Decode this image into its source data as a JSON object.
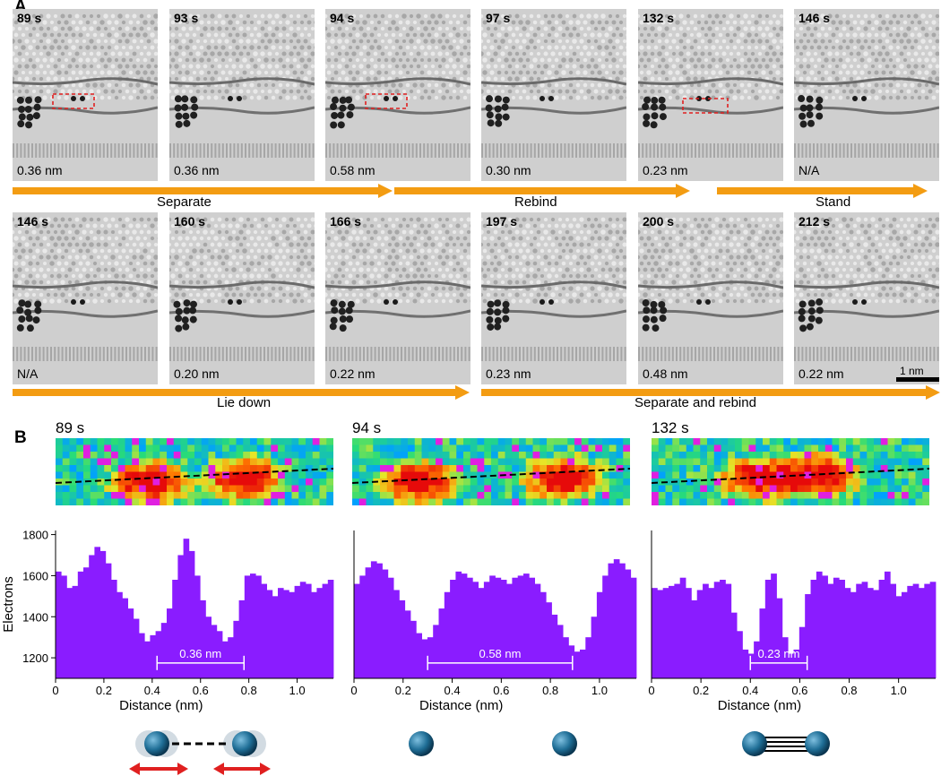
{
  "panel_a_label": "A",
  "panel_b_label": "B",
  "row1": [
    {
      "time": "89 s",
      "dist": "0.36 nm"
    },
    {
      "time": "93 s",
      "dist": "0.36 nm"
    },
    {
      "time": "94 s",
      "dist": "0.58 nm"
    },
    {
      "time": "97 s",
      "dist": "0.30 nm"
    },
    {
      "time": "132 s",
      "dist": "0.23 nm"
    },
    {
      "time": "146 s",
      "dist": "N/A"
    }
  ],
  "row2": [
    {
      "time": "146 s",
      "dist": "N/A"
    },
    {
      "time": "160 s",
      "dist": "0.20 nm"
    },
    {
      "time": "166 s",
      "dist": "0.22 nm"
    },
    {
      "time": "197 s",
      "dist": "0.23 nm"
    },
    {
      "time": "200 s",
      "dist": "0.48 nm"
    },
    {
      "time": "212 s",
      "dist": "0.22 nm"
    }
  ],
  "stages": {
    "separate": "Separate",
    "rebind": "Rebind",
    "stand": "Stand",
    "lie_down": "Lie down",
    "separate_and_rebind": "Separate and rebind"
  },
  "scale_bar_label": "1 nm",
  "heatmap_titles": [
    "89 s",
    "94 s",
    "132 s"
  ],
  "colors": {
    "bars": "#8a1cff",
    "arrow": "#f39c12",
    "marker_box": "#e02020",
    "atom": "#2a6f97",
    "double_headed_arrow": "#e02020"
  },
  "chart_data": [
    {
      "type": "bar",
      "ylabel": "Electrons",
      "xlabel": "Distance (nm)",
      "xlim": [
        0,
        1.15
      ],
      "ylim": [
        1100,
        1820
      ],
      "yticks": [
        1200,
        1400,
        1600,
        1800
      ],
      "xticks": [
        0,
        0.2,
        0.4,
        0.6,
        0.8,
        1.0
      ],
      "bin_width": 0.023,
      "annotation": "0.36 nm",
      "annotation_range": [
        0.42,
        0.78
      ],
      "values": [
        1620,
        1600,
        1540,
        1550,
        1620,
        1640,
        1700,
        1740,
        1720,
        1660,
        1580,
        1520,
        1490,
        1440,
        1390,
        1320,
        1280,
        1310,
        1330,
        1370,
        1440,
        1580,
        1700,
        1780,
        1720,
        1600,
        1480,
        1400,
        1360,
        1330,
        1280,
        1300,
        1380,
        1480,
        1600,
        1610,
        1600,
        1560,
        1530,
        1500,
        1540,
        1530,
        1520,
        1550,
        1570,
        1560,
        1520,
        1540,
        1560,
        1580
      ]
    },
    {
      "type": "bar",
      "ylabel": "",
      "xlabel": "Distance (nm)",
      "xlim": [
        0,
        1.15
      ],
      "ylim": [
        1100,
        1820
      ],
      "xticks": [
        0,
        0.2,
        0.4,
        0.6,
        0.8,
        1.0
      ],
      "bin_width": 0.023,
      "annotation": "0.58 nm",
      "annotation_range": [
        0.3,
        0.89
      ],
      "values": [
        1560,
        1600,
        1640,
        1670,
        1660,
        1630,
        1590,
        1530,
        1480,
        1430,
        1380,
        1320,
        1290,
        1300,
        1360,
        1440,
        1520,
        1580,
        1620,
        1610,
        1590,
        1570,
        1540,
        1570,
        1600,
        1590,
        1580,
        1560,
        1590,
        1600,
        1610,
        1590,
        1560,
        1520,
        1470,
        1410,
        1360,
        1300,
        1260,
        1230,
        1240,
        1300,
        1400,
        1520,
        1600,
        1660,
        1680,
        1660,
        1630,
        1590
      ]
    },
    {
      "type": "bar",
      "ylabel": "",
      "xlabel": "Distance (nm)",
      "xlim": [
        0,
        1.15
      ],
      "ylim": [
        1100,
        1820
      ],
      "xticks": [
        0,
        0.2,
        0.4,
        0.6,
        0.8,
        1.0
      ],
      "bin_width": 0.023,
      "annotation": "0.23 nm",
      "annotation_range": [
        0.4,
        0.63
      ],
      "values": [
        1540,
        1530,
        1540,
        1550,
        1560,
        1590,
        1540,
        1480,
        1530,
        1560,
        1540,
        1570,
        1580,
        1560,
        1420,
        1330,
        1240,
        1220,
        1280,
        1440,
        1580,
        1610,
        1490,
        1300,
        1220,
        1240,
        1350,
        1510,
        1580,
        1620,
        1600,
        1560,
        1590,
        1580,
        1540,
        1520,
        1560,
        1570,
        1540,
        1530,
        1580,
        1620,
        1560,
        1500,
        1520,
        1550,
        1560,
        1540,
        1560,
        1570
      ]
    }
  ]
}
